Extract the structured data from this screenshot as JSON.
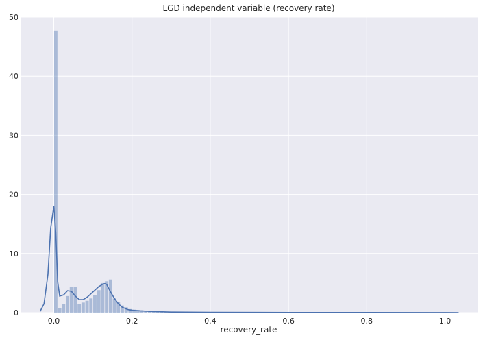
{
  "chart_data": {
    "type": "bar",
    "title": "LGD independent variable (recovery rate)",
    "xlabel": "recovery_rate",
    "ylabel": "",
    "xlim": [
      -0.085,
      1.085
    ],
    "ylim": [
      0,
      50
    ],
    "xticks": [
      0.0,
      0.2,
      0.4,
      0.6,
      0.8,
      1.0
    ],
    "xtick_labels": [
      "0.0",
      "0.2",
      "0.4",
      "0.6",
      "0.8",
      "1.0"
    ],
    "yticks": [
      0,
      10,
      20,
      30,
      40,
      50
    ],
    "ytick_labels": [
      "0",
      "10",
      "20",
      "30",
      "40",
      "50"
    ],
    "grid": true,
    "background": "#eaeaf2",
    "histogram": {
      "bin_start": 0.0,
      "bin_width": 0.01,
      "heights": [
        47.7,
        0.8,
        1.4,
        2.8,
        4.3,
        4.4,
        1.4,
        1.7,
        2.0,
        2.4,
        3.0,
        3.8,
        5.0,
        5.3,
        5.6,
        2.4,
        1.8,
        1.2,
        0.9,
        0.6,
        0.5,
        0.45,
        0.4,
        0.35,
        0.3,
        0.25,
        0.2,
        0.18,
        0.15,
        0.12
      ],
      "color": "#4c72b0",
      "opacity": 0.4
    },
    "kde": {
      "x": [
        -0.035,
        -0.025,
        -0.015,
        -0.008,
        0.0,
        0.005,
        0.01,
        0.015,
        0.025,
        0.035,
        0.045,
        0.055,
        0.065,
        0.075,
        0.085,
        0.095,
        0.105,
        0.115,
        0.125,
        0.13,
        0.135,
        0.145,
        0.155,
        0.165,
        0.175,
        0.19,
        0.2,
        0.22,
        0.25,
        0.3,
        0.4,
        0.6,
        0.8,
        1.0,
        1.035
      ],
      "y": [
        0.2,
        1.5,
        6.5,
        14.3,
        18.0,
        13.5,
        5.2,
        2.8,
        3.0,
        3.7,
        3.6,
        2.8,
        2.2,
        2.2,
        2.6,
        3.2,
        3.8,
        4.4,
        4.8,
        4.9,
        4.8,
        3.5,
        2.4,
        1.5,
        0.9,
        0.5,
        0.4,
        0.3,
        0.2,
        0.1,
        0.05,
        0.03,
        0.02,
        0.01,
        0.0
      ],
      "color": "#4c72b0"
    }
  }
}
